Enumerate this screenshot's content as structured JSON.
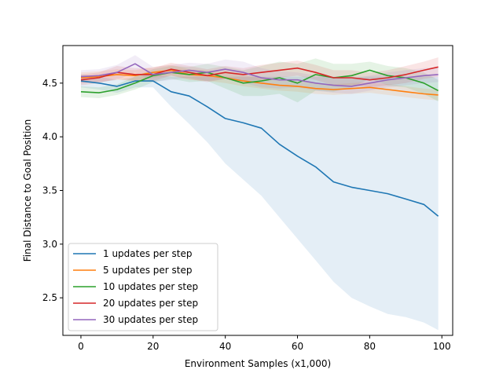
{
  "chart_data": {
    "type": "line",
    "xlabel": "Environment Samples (x1,000)",
    "ylabel": "Final Distance to Goal Position",
    "xlim": [
      -5,
      103
    ],
    "ylim": [
      2.15,
      4.85
    ],
    "xticks": [
      0,
      20,
      40,
      60,
      80,
      100
    ],
    "xtick_labels": [
      "0",
      "20",
      "40",
      "60",
      "80",
      "100"
    ],
    "yticks": [
      2.5,
      3.0,
      3.5,
      4.0,
      4.5
    ],
    "ytick_labels": [
      "2.5",
      "3.0",
      "3.5",
      "4.0",
      "4.5"
    ],
    "grid": false,
    "legend_position": "lower-left",
    "series": [
      {
        "name": "1 updates per step",
        "color": "#1f77b4",
        "x": [
          0,
          5,
          10,
          15,
          20,
          25,
          30,
          35,
          40,
          45,
          50,
          55,
          60,
          65,
          70,
          75,
          80,
          85,
          90,
          95,
          99
        ],
        "y": [
          4.52,
          4.5,
          4.47,
          4.52,
          4.52,
          4.42,
          4.38,
          4.28,
          4.17,
          4.13,
          4.08,
          3.93,
          3.82,
          3.72,
          3.58,
          3.53,
          3.5,
          3.47,
          3.42,
          3.37,
          3.26
        ],
        "upper": [
          4.58,
          4.56,
          4.53,
          4.56,
          4.58,
          4.56,
          4.56,
          4.56,
          4.56,
          4.56,
          4.56,
          4.56,
          4.56,
          4.56,
          4.56,
          4.56,
          4.56,
          4.56,
          4.56,
          4.56,
          4.56
        ],
        "lower": [
          4.46,
          4.44,
          4.41,
          4.46,
          4.46,
          4.28,
          4.12,
          3.95,
          3.75,
          3.6,
          3.45,
          3.25,
          3.05,
          2.85,
          2.65,
          2.5,
          2.42,
          2.35,
          2.32,
          2.27,
          2.2
        ]
      },
      {
        "name": "5 updates per step",
        "color": "#ff7f0e",
        "x": [
          0,
          5,
          10,
          15,
          20,
          25,
          30,
          35,
          40,
          45,
          50,
          55,
          60,
          65,
          70,
          75,
          80,
          85,
          90,
          95,
          99
        ],
        "y": [
          4.55,
          4.56,
          4.58,
          4.57,
          4.6,
          4.62,
          4.58,
          4.57,
          4.55,
          4.52,
          4.5,
          4.48,
          4.47,
          4.45,
          4.44,
          4.45,
          4.46,
          4.44,
          4.42,
          4.4,
          4.39
        ],
        "upper": [
          4.6,
          4.61,
          4.63,
          4.62,
          4.65,
          4.67,
          4.63,
          4.62,
          4.6,
          4.57,
          4.55,
          4.53,
          4.52,
          4.5,
          4.49,
          4.5,
          4.51,
          4.49,
          4.47,
          4.45,
          4.44
        ],
        "lower": [
          4.5,
          4.51,
          4.53,
          4.52,
          4.55,
          4.57,
          4.53,
          4.52,
          4.5,
          4.47,
          4.45,
          4.43,
          4.42,
          4.4,
          4.39,
          4.4,
          4.41,
          4.39,
          4.37,
          4.35,
          4.34
        ]
      },
      {
        "name": "10 updates per step",
        "color": "#2ca02c",
        "x": [
          0,
          5,
          10,
          15,
          20,
          25,
          30,
          35,
          40,
          45,
          50,
          55,
          60,
          65,
          70,
          75,
          80,
          85,
          90,
          95,
          99
        ],
        "y": [
          4.42,
          4.41,
          4.44,
          4.5,
          4.57,
          4.6,
          4.58,
          4.6,
          4.55,
          4.5,
          4.52,
          4.55,
          4.5,
          4.58,
          4.55,
          4.57,
          4.62,
          4.57,
          4.55,
          4.5,
          4.43
        ],
        "upper": [
          4.47,
          4.46,
          4.49,
          4.56,
          4.63,
          4.66,
          4.65,
          4.68,
          4.65,
          4.62,
          4.66,
          4.7,
          4.68,
          4.73,
          4.68,
          4.68,
          4.7,
          4.66,
          4.64,
          4.6,
          4.53
        ],
        "lower": [
          4.37,
          4.36,
          4.39,
          4.44,
          4.51,
          4.54,
          4.51,
          4.52,
          4.45,
          4.38,
          4.38,
          4.4,
          4.32,
          4.43,
          4.42,
          4.46,
          4.54,
          4.48,
          4.46,
          4.4,
          4.33
        ]
      },
      {
        "name": "20 updates per step",
        "color": "#d62728",
        "x": [
          0,
          5,
          10,
          15,
          20,
          25,
          30,
          35,
          40,
          45,
          50,
          55,
          60,
          65,
          70,
          75,
          80,
          85,
          90,
          95,
          99
        ],
        "y": [
          4.53,
          4.55,
          4.6,
          4.58,
          4.58,
          4.63,
          4.6,
          4.57,
          4.6,
          4.58,
          4.6,
          4.62,
          4.64,
          4.6,
          4.55,
          4.55,
          4.53,
          4.55,
          4.58,
          4.62,
          4.65
        ],
        "upper": [
          4.58,
          4.6,
          4.66,
          4.64,
          4.64,
          4.69,
          4.66,
          4.63,
          4.66,
          4.64,
          4.67,
          4.69,
          4.71,
          4.67,
          4.62,
          4.62,
          4.6,
          4.62,
          4.66,
          4.7,
          4.74
        ],
        "lower": [
          4.48,
          4.5,
          4.54,
          4.52,
          4.52,
          4.57,
          4.54,
          4.51,
          4.54,
          4.52,
          4.53,
          4.55,
          4.57,
          4.53,
          4.48,
          4.48,
          4.46,
          4.48,
          4.5,
          4.54,
          4.56
        ]
      },
      {
        "name": "30 updates per step",
        "color": "#9467bd",
        "x": [
          0,
          5,
          10,
          15,
          20,
          25,
          30,
          35,
          40,
          45,
          50,
          55,
          60,
          65,
          70,
          75,
          80,
          85,
          90,
          95,
          99
        ],
        "y": [
          4.56,
          4.57,
          4.6,
          4.68,
          4.58,
          4.6,
          4.62,
          4.6,
          4.63,
          4.6,
          4.55,
          4.53,
          4.53,
          4.5,
          4.48,
          4.47,
          4.5,
          4.53,
          4.55,
          4.57,
          4.58
        ],
        "upper": [
          4.62,
          4.63,
          4.67,
          4.76,
          4.65,
          4.67,
          4.69,
          4.68,
          4.72,
          4.7,
          4.64,
          4.61,
          4.6,
          4.57,
          4.55,
          4.54,
          4.57,
          4.6,
          4.62,
          4.64,
          4.65
        ],
        "lower": [
          4.5,
          4.51,
          4.53,
          4.6,
          4.51,
          4.53,
          4.55,
          4.52,
          4.54,
          4.5,
          4.46,
          4.45,
          4.46,
          4.43,
          4.41,
          4.4,
          4.43,
          4.46,
          4.48,
          4.5,
          4.51
        ]
      }
    ]
  }
}
